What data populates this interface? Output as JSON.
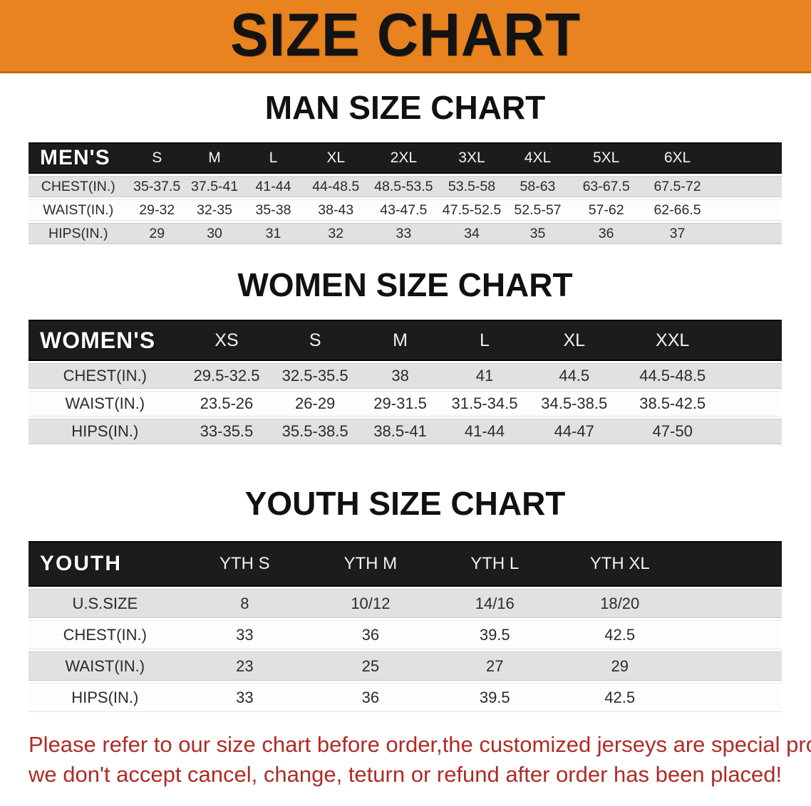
{
  "banner": {
    "title": "SIZE CHART",
    "bg_color": "#E8831F"
  },
  "colors": {
    "banner_bg": "#E8831F",
    "banner_edge": "#C26A10",
    "header_bar": "#1C1C1C",
    "row_gray": "#E1E1E1",
    "row_white": "#FDFDFD",
    "disclaimer_red": "#AF2B26",
    "heading_black": "#111111"
  },
  "sections": [
    {
      "id": "men",
      "heading": "MAN SIZE CHART",
      "table": {
        "header_label": "MEN'S",
        "columns": [
          "S",
          "M",
          "L",
          "XL",
          "2XL",
          "3XL",
          "4XL",
          "5XL",
          "6XL"
        ],
        "rows": [
          {
            "label": "CHEST(IN.)",
            "values": [
              "35-37.5",
              "37.5-41",
              "41-44",
              "44-48.5",
              "48.5-53.5",
              "53.5-58",
              "58-63",
              "63-67.5",
              "67.5-72"
            ]
          },
          {
            "label": "WAIST(IN.)",
            "values": [
              "29-32",
              "32-35",
              "35-38",
              "38-43",
              "43-47.5",
              "47.5-52.5",
              "52.5-57",
              "57-62",
              "62-66.5"
            ]
          },
          {
            "label": "HIPS(IN.)",
            "values": [
              "29",
              "30",
              "31",
              "32",
              "33",
              "34",
              "35",
              "36",
              "37"
            ]
          }
        ]
      }
    },
    {
      "id": "women",
      "heading": "WOMEN SIZE CHART",
      "table": {
        "header_label": "WOMEN'S",
        "columns": [
          "XS",
          "S",
          "M",
          "L",
          "XL",
          "XXL"
        ],
        "rows": [
          {
            "label": "CHEST(IN.)",
            "values": [
              "29.5-32.5",
              "32.5-35.5",
              "38",
              "41",
              "44.5",
              "44.5-48.5"
            ]
          },
          {
            "label": "WAIST(IN.)",
            "values": [
              "23.5-26",
              "26-29",
              "29-31.5",
              "31.5-34.5",
              "34.5-38.5",
              "38.5-42.5"
            ]
          },
          {
            "label": "HIPS(IN.)",
            "values": [
              "33-35.5",
              "35.5-38.5",
              "38.5-41",
              "41-44",
              "44-47",
              "47-50"
            ]
          }
        ]
      }
    },
    {
      "id": "youth",
      "heading": "YOUTH SIZE CHART",
      "table": {
        "header_label": "YOUTH",
        "columns": [
          "YTH S",
          "YTH M",
          "YTH L",
          "YTH XL"
        ],
        "rows": [
          {
            "label": "U.S.SIZE",
            "values": [
              "8",
              "10/12",
              "14/16",
              "18/20"
            ]
          },
          {
            "label": "CHEST(IN.)",
            "values": [
              "33",
              "36",
              "39.5",
              "42.5"
            ]
          },
          {
            "label": "WAIST(IN.)",
            "values": [
              "23",
              "25",
              "27",
              "29"
            ]
          },
          {
            "label": "HIPS(IN.)",
            "values": [
              "33",
              "36",
              "39.5",
              "42.5"
            ]
          }
        ]
      }
    }
  ],
  "footer": {
    "lines": [
      "Please refer to our size chart before order,the customized jerseys are special products,",
      "we don't accept cancel, change, teturn or refund after order has been placed!"
    ]
  }
}
